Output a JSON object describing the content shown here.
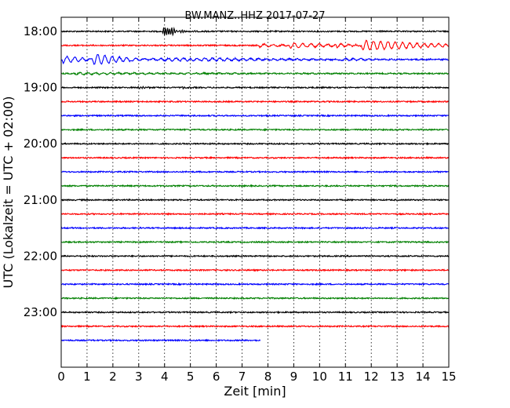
{
  "chart_data": {
    "type": "line",
    "title": "BW.MANZ..HHZ 2017-07-27",
    "xlabel": "Zeit  [min]",
    "ylabel": "UTC (Lokalzeit = UTC + 02:00)",
    "xlim": [
      0,
      15
    ],
    "x_ticks": [
      "0",
      "1",
      "2",
      "3",
      "4",
      "5",
      "6",
      "7",
      "8",
      "9",
      "10",
      "11",
      "12",
      "13",
      "14",
      "15"
    ],
    "y_ticks": [
      "18:00",
      "19:00",
      "20:00",
      "21:00",
      "22:00",
      "23:00"
    ],
    "grid": "vertical dotted lines at each minute",
    "trace_colors": [
      "#000000",
      "#ff0000",
      "#0000ff",
      "#008000"
    ],
    "series": [
      {
        "start": "18:00",
        "duration_min": 15,
        "color": "#000000",
        "events": [
          {
            "at_min": 3.9,
            "amp": 7,
            "period_min": 0.08,
            "decay": 0.35
          },
          {
            "at_min": 4.2,
            "amp": 3,
            "period_min": 0.1,
            "decay": 0.4
          }
        ]
      },
      {
        "start": "18:15",
        "duration_min": 15,
        "color": "#ff0000",
        "events": [
          {
            "at_min": 7.6,
            "amp": 2,
            "period_min": 0.35,
            "decay": 1.2
          },
          {
            "at_min": 8.8,
            "amp": 4,
            "period_min": 0.32,
            "decay": 1.3
          },
          {
            "at_min": 10.6,
            "amp": 4,
            "period_min": 0.3,
            "decay": 0.7
          },
          {
            "at_min": 11.6,
            "amp": 7,
            "period_min": 0.28,
            "decay": 2.4
          }
        ]
      },
      {
        "start": "18:30",
        "duration_min": 15,
        "color": "#0000ff",
        "events": [
          {
            "at_min": 0.0,
            "amp": 5,
            "period_min": 0.3,
            "decay": 0.9
          },
          {
            "at_min": 1.2,
            "amp": 6,
            "period_min": 0.28,
            "decay": 1.6
          },
          {
            "at_min": 2.7,
            "amp": 3,
            "period_min": 0.3,
            "decay": 2.2
          },
          {
            "at_min": 5.0,
            "amp": 2,
            "period_min": 0.3,
            "decay": 5.0
          },
          {
            "at_min": 10.8,
            "amp": 2,
            "period_min": 0.3,
            "decay": 1.5
          }
        ]
      },
      {
        "start": "18:45",
        "duration_min": 15,
        "color": "#008000",
        "events": [
          {
            "at_min": 0.5,
            "amp": 1.2,
            "period_min": 0.3,
            "decay": 6.0
          }
        ]
      },
      {
        "start": "19:00",
        "duration_min": 15,
        "color": "#000000",
        "events": [
          {
            "at_min": 2.9,
            "amp": 2,
            "period_min": 0.1,
            "decay": 0.3
          },
          {
            "at_min": 4.6,
            "amp": 1.5,
            "period_min": 0.1,
            "decay": 0.3
          }
        ]
      },
      {
        "start": "19:15",
        "duration_min": 15,
        "color": "#ff0000",
        "events": []
      },
      {
        "start": "19:30",
        "duration_min": 15,
        "color": "#0000ff",
        "events": []
      },
      {
        "start": "19:45",
        "duration_min": 15,
        "color": "#008000",
        "events": []
      },
      {
        "start": "20:00",
        "duration_min": 15,
        "color": "#000000",
        "events": []
      },
      {
        "start": "20:15",
        "duration_min": 15,
        "color": "#ff0000",
        "events": []
      },
      {
        "start": "20:30",
        "duration_min": 15,
        "color": "#0000ff",
        "events": []
      },
      {
        "start": "20:45",
        "duration_min": 15,
        "color": "#008000",
        "events": []
      },
      {
        "start": "21:00",
        "duration_min": 15,
        "color": "#000000",
        "events": []
      },
      {
        "start": "21:15",
        "duration_min": 15,
        "color": "#ff0000",
        "events": []
      },
      {
        "start": "21:30",
        "duration_min": 15,
        "color": "#0000ff",
        "events": []
      },
      {
        "start": "21:45",
        "duration_min": 15,
        "color": "#008000",
        "events": []
      },
      {
        "start": "22:00",
        "duration_min": 15,
        "color": "#000000",
        "events": []
      },
      {
        "start": "22:15",
        "duration_min": 15,
        "color": "#ff0000",
        "events": []
      },
      {
        "start": "22:30",
        "duration_min": 15,
        "color": "#0000ff",
        "events": []
      },
      {
        "start": "22:45",
        "duration_min": 15,
        "color": "#008000",
        "events": []
      },
      {
        "start": "23:00",
        "duration_min": 15,
        "color": "#000000",
        "events": []
      },
      {
        "start": "23:15",
        "duration_min": 15,
        "color": "#ff0000",
        "events": []
      },
      {
        "start": "23:30",
        "duration_min": 7.7,
        "color": "#0000ff",
        "events": []
      }
    ]
  }
}
